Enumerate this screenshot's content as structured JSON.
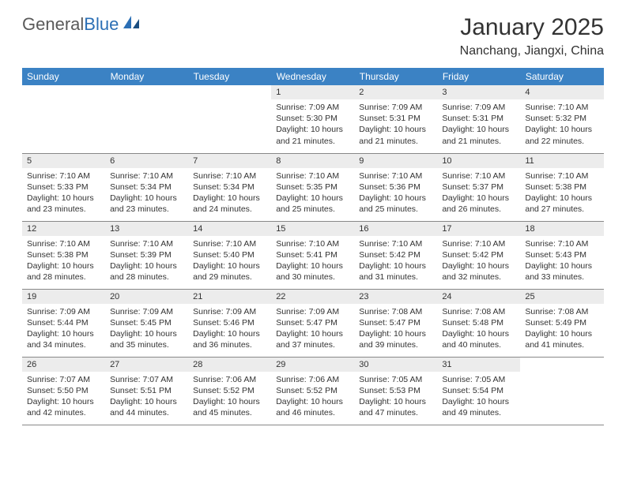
{
  "logo": {
    "text_gray": "General",
    "text_blue": "Blue"
  },
  "title": "January 2025",
  "location": "Nanchang, Jiangxi, China",
  "colors": {
    "header_bg": "#3b82c4",
    "header_text": "#ffffff",
    "daynum_bg": "#ececec",
    "text": "#333333",
    "grid_line": "#888888",
    "page_bg": "#ffffff",
    "logo_gray": "#5a5a5a",
    "logo_blue": "#2b6fb5"
  },
  "typography": {
    "title_fontsize": 30,
    "location_fontsize": 16,
    "weekday_fontsize": 12,
    "daynum_fontsize": 11,
    "cell_fontsize": 10.5
  },
  "weekdays": [
    "Sunday",
    "Monday",
    "Tuesday",
    "Wednesday",
    "Thursday",
    "Friday",
    "Saturday"
  ],
  "weeks": [
    [
      null,
      null,
      null,
      {
        "n": "1",
        "sunrise": "7:09 AM",
        "sunset": "5:30 PM",
        "daylight": "10 hours and 21 minutes."
      },
      {
        "n": "2",
        "sunrise": "7:09 AM",
        "sunset": "5:31 PM",
        "daylight": "10 hours and 21 minutes."
      },
      {
        "n": "3",
        "sunrise": "7:09 AM",
        "sunset": "5:31 PM",
        "daylight": "10 hours and 21 minutes."
      },
      {
        "n": "4",
        "sunrise": "7:10 AM",
        "sunset": "5:32 PM",
        "daylight": "10 hours and 22 minutes."
      }
    ],
    [
      {
        "n": "5",
        "sunrise": "7:10 AM",
        "sunset": "5:33 PM",
        "daylight": "10 hours and 23 minutes."
      },
      {
        "n": "6",
        "sunrise": "7:10 AM",
        "sunset": "5:34 PM",
        "daylight": "10 hours and 23 minutes."
      },
      {
        "n": "7",
        "sunrise": "7:10 AM",
        "sunset": "5:34 PM",
        "daylight": "10 hours and 24 minutes."
      },
      {
        "n": "8",
        "sunrise": "7:10 AM",
        "sunset": "5:35 PM",
        "daylight": "10 hours and 25 minutes."
      },
      {
        "n": "9",
        "sunrise": "7:10 AM",
        "sunset": "5:36 PM",
        "daylight": "10 hours and 25 minutes."
      },
      {
        "n": "10",
        "sunrise": "7:10 AM",
        "sunset": "5:37 PM",
        "daylight": "10 hours and 26 minutes."
      },
      {
        "n": "11",
        "sunrise": "7:10 AM",
        "sunset": "5:38 PM",
        "daylight": "10 hours and 27 minutes."
      }
    ],
    [
      {
        "n": "12",
        "sunrise": "7:10 AM",
        "sunset": "5:38 PM",
        "daylight": "10 hours and 28 minutes."
      },
      {
        "n": "13",
        "sunrise": "7:10 AM",
        "sunset": "5:39 PM",
        "daylight": "10 hours and 28 minutes."
      },
      {
        "n": "14",
        "sunrise": "7:10 AM",
        "sunset": "5:40 PM",
        "daylight": "10 hours and 29 minutes."
      },
      {
        "n": "15",
        "sunrise": "7:10 AM",
        "sunset": "5:41 PM",
        "daylight": "10 hours and 30 minutes."
      },
      {
        "n": "16",
        "sunrise": "7:10 AM",
        "sunset": "5:42 PM",
        "daylight": "10 hours and 31 minutes."
      },
      {
        "n": "17",
        "sunrise": "7:10 AM",
        "sunset": "5:42 PM",
        "daylight": "10 hours and 32 minutes."
      },
      {
        "n": "18",
        "sunrise": "7:10 AM",
        "sunset": "5:43 PM",
        "daylight": "10 hours and 33 minutes."
      }
    ],
    [
      {
        "n": "19",
        "sunrise": "7:09 AM",
        "sunset": "5:44 PM",
        "daylight": "10 hours and 34 minutes."
      },
      {
        "n": "20",
        "sunrise": "7:09 AM",
        "sunset": "5:45 PM",
        "daylight": "10 hours and 35 minutes."
      },
      {
        "n": "21",
        "sunrise": "7:09 AM",
        "sunset": "5:46 PM",
        "daylight": "10 hours and 36 minutes."
      },
      {
        "n": "22",
        "sunrise": "7:09 AM",
        "sunset": "5:47 PM",
        "daylight": "10 hours and 37 minutes."
      },
      {
        "n": "23",
        "sunrise": "7:08 AM",
        "sunset": "5:47 PM",
        "daylight": "10 hours and 39 minutes."
      },
      {
        "n": "24",
        "sunrise": "7:08 AM",
        "sunset": "5:48 PM",
        "daylight": "10 hours and 40 minutes."
      },
      {
        "n": "25",
        "sunrise": "7:08 AM",
        "sunset": "5:49 PM",
        "daylight": "10 hours and 41 minutes."
      }
    ],
    [
      {
        "n": "26",
        "sunrise": "7:07 AM",
        "sunset": "5:50 PM",
        "daylight": "10 hours and 42 minutes."
      },
      {
        "n": "27",
        "sunrise": "7:07 AM",
        "sunset": "5:51 PM",
        "daylight": "10 hours and 44 minutes."
      },
      {
        "n": "28",
        "sunrise": "7:06 AM",
        "sunset": "5:52 PM",
        "daylight": "10 hours and 45 minutes."
      },
      {
        "n": "29",
        "sunrise": "7:06 AM",
        "sunset": "5:52 PM",
        "daylight": "10 hours and 46 minutes."
      },
      {
        "n": "30",
        "sunrise": "7:05 AM",
        "sunset": "5:53 PM",
        "daylight": "10 hours and 47 minutes."
      },
      {
        "n": "31",
        "sunrise": "7:05 AM",
        "sunset": "5:54 PM",
        "daylight": "10 hours and 49 minutes."
      },
      null
    ]
  ],
  "labels": {
    "sunrise": "Sunrise:",
    "sunset": "Sunset:",
    "daylight": "Daylight:"
  }
}
